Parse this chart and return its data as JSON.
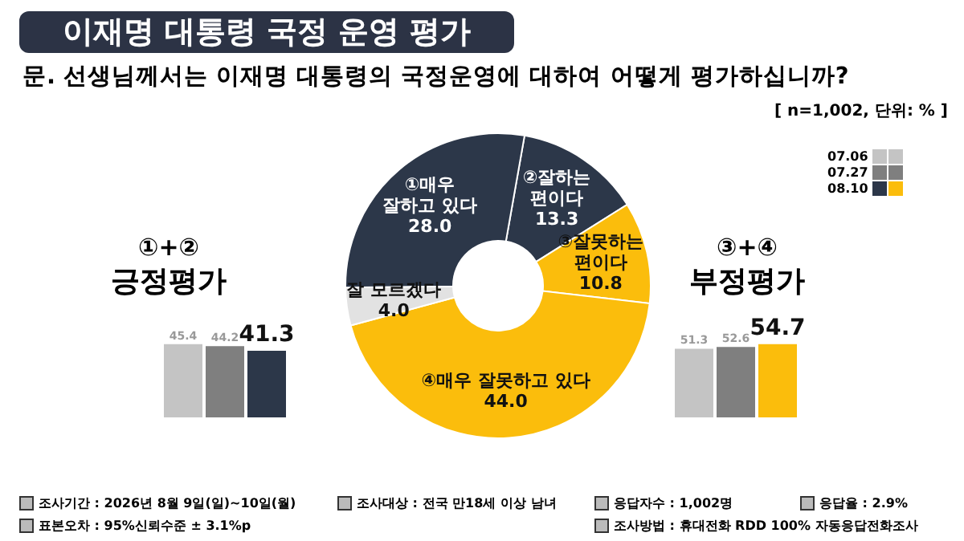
{
  "chart_data": [
    {
      "type": "donut",
      "title": "이재명 대통령 국정 운영 평가",
      "subtitle": "문. 선생님께서는 이재명 대통령의 국정운영에 대하여 어떻게 평가하십니까?",
      "categories": [
        "②잘하는 편이다",
        "③잘못하는 편이다",
        "④매우 잘못하고 있다",
        "잘 모르겠다",
        "①매우 잘하고 있다"
      ],
      "values": [
        13.3,
        10.8,
        44.0,
        4.0,
        28.0
      ],
      "colors": [
        "#2c3749",
        "#fbbd0c",
        "#fbbd0c",
        "#e2e2e2",
        "#2c3749"
      ],
      "value_labels": [
        "13.3",
        "10.8",
        "44.0",
        "4.0",
        "28.0"
      ],
      "annotations": [
        "[ n=1,002, 단위: % ]",
        "조사기간 : 2026년 8월 9일(일)~10일(월)",
        "조사대상 : 전국 만18세 이상 남녀",
        "응답자수 : 1,002명",
        "응답율 : 2.9%",
        "표본오차 : 95%신뢰수준 ± 3.1%p",
        "조사방법 : 휴대전화 RDD 100% 자동응답전화조사"
      ]
    },
    {
      "type": "bar",
      "title": "①+②",
      "subtitle": "긍정평가",
      "categories": [
        null
      ],
      "legend": "top right",
      "data_labels": true,
      "series": [
        {
          "name": "07.06",
          "color": "#c4c4c4",
          "values": [
            45.4
          ]
        },
        {
          "name": "07.27",
          "color": "#7f7f7f",
          "values": [
            44.2
          ]
        },
        {
          "name": "08.10",
          "color": "#2c3749",
          "values": [
            41.3
          ]
        }
      ]
    },
    {
      "type": "bar",
      "title": "③+④",
      "subtitle": "부정평가",
      "categories": [
        null
      ],
      "data_labels": true,
      "series": [
        {
          "name": "07.06",
          "color": "#c4c4c4",
          "values": [
            51.3
          ]
        },
        {
          "name": "07.27",
          "color": "#7f7f7f",
          "values": [
            52.6
          ]
        },
        {
          "name": "08.10",
          "color": "#fbbd0c",
          "values": [
            54.7
          ]
        }
      ]
    }
  ]
}
